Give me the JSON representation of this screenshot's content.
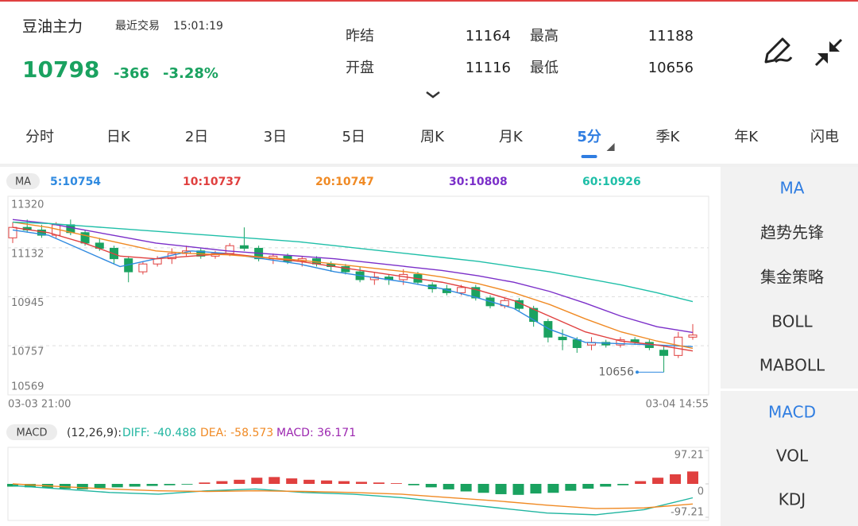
{
  "quote": {
    "name": "豆油主力",
    "trade_label": "最近交易",
    "time": "15:01:19",
    "price": 10798,
    "change": -366,
    "change_pct": "-3.28%",
    "stats": [
      {
        "label": "昨结",
        "value": 11164
      },
      {
        "label": "最高",
        "value": 11188
      },
      {
        "label": "开盘",
        "value": 11116
      },
      {
        "label": "最低",
        "value": 10656
      }
    ]
  },
  "tabs": {
    "items": [
      "分时",
      "日K",
      "2日",
      "3日",
      "5日",
      "周K",
      "月K",
      "5分",
      "季K",
      "年K",
      "闪电"
    ],
    "active": 7
  },
  "kline": {
    "type": "candlestick",
    "indicator": "MA",
    "ylim": [
      10569,
      11320
    ],
    "yticks": [
      11320,
      11132,
      10945,
      10757,
      10569
    ],
    "x_labels": [
      "03-03 21:00",
      "03-04 14:55"
    ],
    "low_label": 10656,
    "candles": [
      [
        11170,
        11230,
        11150,
        11210
      ],
      [
        11210,
        11240,
        11190,
        11200
      ],
      [
        11200,
        11220,
        11170,
        11180
      ],
      [
        11180,
        11230,
        11170,
        11220
      ],
      [
        11220,
        11240,
        11180,
        11190
      ],
      [
        11190,
        11200,
        11140,
        11150
      ],
      [
        11150,
        11170,
        11120,
        11130
      ],
      [
        11130,
        11140,
        11070,
        11090
      ],
      [
        11090,
        11100,
        11000,
        11040
      ],
      [
        11040,
        11080,
        11030,
        11070
      ],
      [
        11070,
        11100,
        11060,
        11090
      ],
      [
        11090,
        11130,
        11070,
        11110
      ],
      [
        11110,
        11140,
        11100,
        11120
      ],
      [
        11120,
        11130,
        11090,
        11100
      ],
      [
        11100,
        11120,
        11090,
        11110
      ],
      [
        11110,
        11150,
        11100,
        11140
      ],
      [
        11140,
        11210,
        11120,
        11130
      ],
      [
        11130,
        11140,
        11080,
        11090
      ],
      [
        11090,
        11110,
        11070,
        11100
      ],
      [
        11100,
        11110,
        11070,
        11080
      ],
      [
        11080,
        11100,
        11060,
        11090
      ],
      [
        11090,
        11100,
        11060,
        11070
      ],
      [
        11070,
        11080,
        11040,
        11060
      ],
      [
        11060,
        11070,
        11030,
        11040
      ],
      [
        11040,
        11060,
        11000,
        11010
      ],
      [
        11010,
        11040,
        10990,
        11020
      ],
      [
        11020,
        11030,
        10990,
        11010
      ],
      [
        11010,
        11050,
        10990,
        11030
      ],
      [
        11030,
        11040,
        10990,
        11000
      ],
      [
        10990,
        11000,
        10960,
        10975
      ],
      [
        10975,
        10990,
        10950,
        10960
      ],
      [
        10960,
        10990,
        10950,
        10980
      ],
      [
        10980,
        10990,
        10930,
        10940
      ],
      [
        10940,
        10950,
        10900,
        10910
      ],
      [
        10910,
        10940,
        10900,
        10930
      ],
      [
        10930,
        10940,
        10890,
        10900
      ],
      [
        10900,
        10910,
        10830,
        10850
      ],
      [
        10850,
        10860,
        10770,
        10790
      ],
      [
        10790,
        10820,
        10740,
        10780
      ],
      [
        10780,
        10790,
        10730,
        10750
      ],
      [
        10760,
        10790,
        10740,
        10770
      ],
      [
        10770,
        10780,
        10750,
        10760
      ],
      [
        10760,
        10790,
        10750,
        10780
      ],
      [
        10780,
        10790,
        10760,
        10770
      ],
      [
        10770,
        10780,
        10740,
        10750
      ],
      [
        10740,
        10760,
        10656,
        10720
      ],
      [
        10720,
        10810,
        10710,
        10790
      ],
      [
        10790,
        10840,
        10780,
        10798
      ]
    ],
    "ma": [
      {
        "name": "5:10754",
        "color": "#2f8ae0",
        "values": [
          11200,
          11180,
          11120,
          11060,
          11090,
          11120,
          11110,
          11090,
          11070,
          11040,
          11020,
          11000,
          10975,
          10940,
          10900,
          10820,
          10770,
          10765,
          10760,
          10754
        ]
      },
      {
        "name": "10:10737",
        "color": "#e0403f",
        "values": [
          11210,
          11190,
          11150,
          11100,
          11090,
          11100,
          11110,
          11095,
          11080,
          11060,
          11040,
          11020,
          11000,
          10970,
          10930,
          10870,
          10810,
          10775,
          10760,
          10737
        ]
      },
      {
        "name": "20:10747",
        "color": "#f08a24",
        "values": [
          11230,
          11210,
          11180,
          11150,
          11120,
          11110,
          11105,
          11095,
          11085,
          11070,
          11055,
          11040,
          11020,
          10995,
          10960,
          10915,
          10860,
          10810,
          10775,
          10747
        ]
      },
      {
        "name": "30:10808",
        "color": "#7b2fc9",
        "values": [
          11240,
          11225,
          11200,
          11175,
          11150,
          11135,
          11120,
          11110,
          11100,
          11090,
          11075,
          11060,
          11045,
          11025,
          11000,
          10965,
          10920,
          10870,
          10830,
          10808
        ]
      },
      {
        "name": "60:10926",
        "color": "#1fbfa8",
        "values": [
          11230,
          11225,
          11215,
          11205,
          11195,
          11185,
          11175,
          11165,
          11155,
          11140,
          11125,
          11110,
          11095,
          11080,
          11060,
          11040,
          11015,
          10990,
          10960,
          10926
        ]
      }
    ]
  },
  "macd": {
    "type": "bar",
    "indicator": "MACD",
    "params": "(12,26,9):",
    "labels": [
      {
        "text": "DIFF: -40.488",
        "color": "#1fb5a0"
      },
      {
        "text": "DEA: -58.573",
        "color": "#f08a24"
      },
      {
        "text": "MACD: 36.171",
        "color": "#9c27b0"
      }
    ],
    "ylim": [
      -97.21,
      97.21
    ],
    "yticks": [
      97.21,
      0,
      -97.21
    ],
    "histogram": [
      -8,
      -10,
      -12,
      -14,
      -16,
      -12,
      -10,
      -8,
      -6,
      -4,
      -2,
      4,
      8,
      12,
      18,
      20,
      16,
      12,
      10,
      8,
      6,
      4,
      2,
      -4,
      -10,
      -16,
      -22,
      -26,
      -30,
      -32,
      -28,
      -26,
      -20,
      -14,
      -8,
      -4,
      8,
      18,
      28,
      36.171
    ],
    "lines": [
      {
        "name": "DIFF",
        "color": "#1fb5a0",
        "values": [
          -5,
          -15,
          -25,
          -30,
          -20,
          -15,
          -25,
          -30,
          -40,
          -55,
          -70,
          -85,
          -90,
          -75,
          -40.488
        ]
      },
      {
        "name": "DEA",
        "color": "#f08a24",
        "values": [
          0,
          -8,
          -15,
          -20,
          -22,
          -20,
          -22,
          -25,
          -30,
          -40,
          -50,
          -62,
          -72,
          -70,
          -58.573
        ]
      }
    ]
  },
  "sidebar": {
    "groups": [
      {
        "items": [
          "MA",
          "趋势先锋",
          "集金策略",
          "BOLL",
          "MABOLL"
        ],
        "active": 0
      },
      {
        "items": [
          "MACD",
          "VOL",
          "KDJ"
        ],
        "active": 0
      }
    ]
  }
}
